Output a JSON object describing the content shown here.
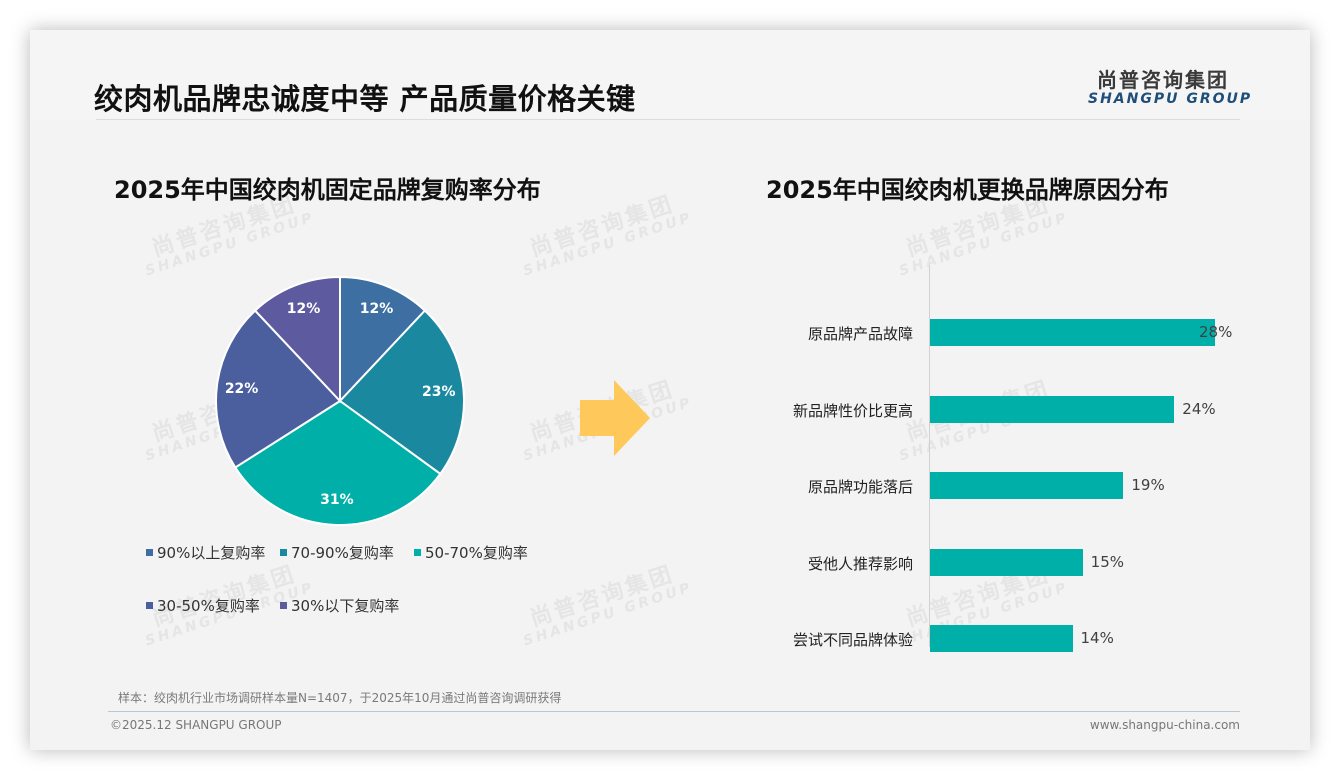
{
  "header": {
    "title": "绞肉机品牌忠诚度中等 产品质量价格关键",
    "logo_cn": "尚普咨询集团",
    "logo_en": "SHANGPU GROUP"
  },
  "watermark": {
    "cn": "尚普咨询集团",
    "en": "SHANGPU GROUP"
  },
  "colors": {
    "slice_90_plus": "#3E6FA3",
    "slice_70_90": "#1A899F",
    "slice_50_70": "#00AFA8",
    "slice_30_50": "#4B5F9E",
    "slice_below_30": "#5E5AA0",
    "bar": "#00AFA8",
    "arrow": "#FFC85A"
  },
  "left_chart": {
    "title": "2025年中国绞肉机固定品牌复购率分布",
    "slices": [
      {
        "label": "90%以上复购率",
        "value": 12,
        "display": "12%"
      },
      {
        "label": "70-90%复购率",
        "value": 23,
        "display": "23%"
      },
      {
        "label": "50-70%复购率",
        "value": 31,
        "display": "31%"
      },
      {
        "label": "30-50%复购率",
        "value": 22,
        "display": "22%"
      },
      {
        "label": "30%以下复购率",
        "value": 12,
        "display": "12%"
      }
    ]
  },
  "right_chart": {
    "title": "2025年中国绞肉机更换品牌原因分布",
    "bars": [
      {
        "label": "原品牌产品故障",
        "value": 28,
        "display": "28%"
      },
      {
        "label": "新品牌性价比更高",
        "value": 24,
        "display": "24%"
      },
      {
        "label": "原品牌功能落后",
        "value": 19,
        "display": "19%"
      },
      {
        "label": "受他人推荐影响",
        "value": 15,
        "display": "15%"
      },
      {
        "label": "尝试不同品牌体验",
        "value": 14,
        "display": "14%"
      }
    ]
  },
  "footer": {
    "note": "样本：绞肉机行业市场调研样本量N=1407，于2025年10月通过尚普咨询调研获得",
    "copyright": "©2025.12 SHANGPU GROUP",
    "website": "www.shangpu-china.com"
  },
  "chart_data": [
    {
      "type": "pie",
      "title": "2025年中国绞肉机固定品牌复购率分布",
      "categories": [
        "90%以上复购率",
        "70-90%复购率",
        "50-70%复购率",
        "30-50%复购率",
        "30%以下复购率"
      ],
      "values": [
        12,
        23,
        31,
        22,
        12
      ],
      "unit": "%",
      "legend_position": "bottom",
      "data_labels": [
        "12%",
        "23%",
        "31%",
        "22%",
        "12%"
      ]
    },
    {
      "type": "bar",
      "orientation": "horizontal",
      "title": "2025年中国绞肉机更换品牌原因分布",
      "categories": [
        "原品牌产品故障",
        "新品牌性价比更高",
        "原品牌功能落后",
        "受他人推荐影响",
        "尝试不同品牌体验"
      ],
      "values": [
        28,
        24,
        19,
        15,
        14
      ],
      "unit": "%",
      "xlabel": "",
      "ylabel": "",
      "grid": false,
      "data_labels": [
        "28%",
        "24%",
        "19%",
        "15%",
        "14%"
      ]
    }
  ]
}
